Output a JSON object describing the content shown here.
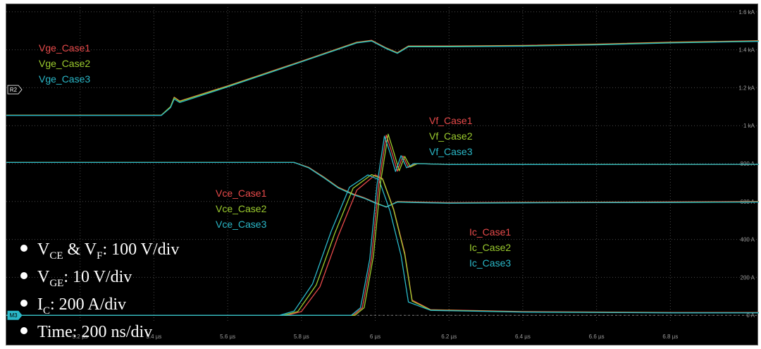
{
  "chart_data": {
    "type": "line",
    "x_unit": "µs",
    "xlim": [
      5.0,
      7.04
    ],
    "x_ticks": [
      "5.2 µs",
      "5.4 µs",
      "5.6 µs",
      "5.8 µs",
      "6 µs",
      "6.2 µs",
      "6.4 µs",
      "6.6 µs",
      "6.8 µs"
    ],
    "x_tick_values": [
      5.2,
      5.4,
      5.6,
      5.8,
      6.0,
      6.2,
      6.4,
      6.6,
      6.8
    ],
    "y_unit": "A",
    "ylim": [
      -40,
      1640
    ],
    "y_ticks": [
      "1.6 kA",
      "1.4 kA",
      "1.2 kA",
      "1 kA",
      "800 A",
      "600 A",
      "400 A",
      "200 A",
      "0 A"
    ],
    "y_tick_values": [
      1600,
      1400,
      1200,
      1000,
      800,
      600,
      400,
      200,
      0
    ],
    "grid": true,
    "markers": {
      "ref": "R2",
      "math": "M3"
    },
    "case_colors": [
      "#e84a4a",
      "#9ccc2e",
      "#2ab8c8"
    ],
    "series": [
      {
        "name": "Vge_Case1",
        "color": "#e84a4a",
        "x": [
          5.0,
          5.42,
          5.445,
          5.455,
          5.47,
          5.6,
          5.8,
          5.95,
          5.99,
          6.03,
          6.06,
          6.09,
          6.2,
          6.4,
          6.6,
          6.8,
          7.04
        ],
        "y": [
          1055,
          1055,
          1100,
          1150,
          1130,
          1210,
          1340,
          1440,
          1450,
          1410,
          1385,
          1420,
          1420,
          1423,
          1430,
          1440,
          1448
        ]
      },
      {
        "name": "Vge_Case2",
        "color": "#9ccc2e",
        "x": [
          5.0,
          5.42,
          5.445,
          5.455,
          5.47,
          5.6,
          5.8,
          5.95,
          5.99,
          6.03,
          6.06,
          6.09,
          6.2,
          6.4,
          6.6,
          6.8,
          7.04
        ],
        "y": [
          1055,
          1055,
          1100,
          1148,
          1128,
          1208,
          1338,
          1438,
          1448,
          1408,
          1383,
          1418,
          1418,
          1421,
          1428,
          1438,
          1446
        ]
      },
      {
        "name": "Vge_Case3",
        "color": "#2ab8c8",
        "x": [
          5.0,
          5.42,
          5.445,
          5.455,
          5.47,
          5.6,
          5.8,
          5.95,
          5.99,
          6.03,
          6.06,
          6.09,
          6.2,
          6.4,
          6.6,
          6.8,
          7.04
        ],
        "y": [
          1054,
          1054,
          1095,
          1140,
          1122,
          1204,
          1336,
          1436,
          1446,
          1406,
          1381,
          1416,
          1416,
          1419,
          1426,
          1436,
          1444
        ]
      },
      {
        "name": "Vce_Case1",
        "color": "#e84a4a",
        "x": [
          5.0,
          5.78,
          5.82,
          5.86,
          5.9,
          5.94,
          5.97,
          6.0,
          6.03,
          6.06,
          6.1,
          6.2,
          6.4,
          6.6,
          6.8,
          7.04
        ],
        "y": [
          806,
          806,
          780,
          730,
          675,
          640,
          620,
          595,
          570,
          600,
          598,
          594,
          596,
          597,
          598,
          600
        ]
      },
      {
        "name": "Vce_Case2",
        "color": "#9ccc2e",
        "x": [
          5.0,
          5.78,
          5.82,
          5.86,
          5.9,
          5.94,
          5.97,
          6.0,
          6.03,
          6.06,
          6.1,
          6.2,
          6.4,
          6.6,
          6.8,
          7.04
        ],
        "y": [
          806,
          806,
          778,
          728,
          673,
          638,
          618,
          593,
          572,
          598,
          596,
          592,
          594,
          595,
          596,
          598
        ]
      },
      {
        "name": "Vce_Case3",
        "color": "#2ab8c8",
        "x": [
          5.0,
          5.78,
          5.82,
          5.86,
          5.9,
          5.94,
          5.97,
          6.0,
          6.03,
          6.06,
          6.1,
          6.2,
          6.4,
          6.6,
          6.8,
          7.04
        ],
        "y": [
          806,
          806,
          777,
          726,
          671,
          636,
          617,
          592,
          571,
          597,
          595,
          591,
          593,
          594,
          595,
          597
        ]
      },
      {
        "name": "Ic_Case1",
        "color": "#e84a4a",
        "x": [
          5.0,
          5.76,
          5.8,
          5.85,
          5.9,
          5.95,
          6.0,
          6.02,
          6.05,
          6.08,
          6.1,
          6.15,
          6.4,
          6.8,
          7.04
        ],
        "y": [
          0,
          0,
          20,
          150,
          420,
          660,
          740,
          720,
          560,
          330,
          80,
          30,
          20,
          15,
          15
        ]
      },
      {
        "name": "Ic_Case2",
        "color": "#9ccc2e",
        "x": [
          5.0,
          5.75,
          5.79,
          5.84,
          5.89,
          5.94,
          5.99,
          6.02,
          6.05,
          6.08,
          6.1,
          6.15,
          6.4,
          6.8,
          7.04
        ],
        "y": [
          0,
          0,
          20,
          160,
          430,
          670,
          742,
          718,
          555,
          320,
          75,
          28,
          18,
          14,
          14
        ]
      },
      {
        "name": "Ic_Case3",
        "color": "#2ab8c8",
        "x": [
          5.0,
          5.74,
          5.78,
          5.83,
          5.88,
          5.93,
          5.98,
          6.01,
          6.04,
          6.07,
          6.09,
          6.15,
          6.4,
          6.8,
          7.04
        ],
        "y": [
          0,
          0,
          22,
          165,
          440,
          675,
          740,
          715,
          550,
          315,
          70,
          26,
          17,
          13,
          13
        ]
      },
      {
        "name": "Vf_Case1",
        "color": "#e84a4a",
        "x": [
          5.0,
          5.94,
          5.965,
          5.99,
          6.01,
          6.03,
          6.045,
          6.06,
          6.075,
          6.09,
          6.11,
          6.2,
          6.5,
          7.04
        ],
        "y": [
          0,
          0,
          40,
          300,
          700,
          950,
          860,
          760,
          840,
          780,
          800,
          795,
          795,
          796
        ]
      },
      {
        "name": "Vf_Case2",
        "color": "#9ccc2e",
        "x": [
          5.0,
          5.945,
          5.97,
          5.995,
          6.015,
          6.035,
          6.05,
          6.065,
          6.08,
          6.095,
          6.115,
          6.2,
          6.5,
          7.04
        ],
        "y": [
          0,
          0,
          40,
          310,
          710,
          955,
          862,
          762,
          838,
          782,
          800,
          795,
          795,
          796
        ]
      },
      {
        "name": "Vf_Case3",
        "color": "#2ab8c8",
        "x": [
          5.0,
          5.935,
          5.96,
          5.985,
          6.005,
          6.025,
          6.04,
          6.055,
          6.07,
          6.085,
          6.105,
          6.2,
          6.5,
          7.04
        ],
        "y": [
          0,
          0,
          40,
          295,
          690,
          945,
          858,
          758,
          842,
          778,
          800,
          795,
          795,
          796
        ]
      }
    ],
    "label_groups": [
      {
        "labels": [
          "Vge_Case1",
          "Vge_Case2",
          "Vge_Case3"
        ]
      },
      {
        "labels": [
          "Vf_Case1",
          "Vf_Case2",
          "Vf_Case3"
        ]
      },
      {
        "labels": [
          "Vce_Case1",
          "Vce_Case2",
          "Vce_Case3"
        ]
      },
      {
        "labels": [
          "Ic_Case1",
          "Ic_Case2",
          "Ic_Case3"
        ]
      }
    ],
    "notes": [
      {
        "main": "V",
        "sub": "CE",
        "mid": " & V",
        "sub2": "F",
        "tail": ": 100 V/div"
      },
      {
        "main": "V",
        "sub": "GE",
        "tail": ": 10 V/div"
      },
      {
        "main": "I",
        "sub": "C",
        "tail": ": 200 A/div"
      },
      {
        "main": "Time: 200 ns/div"
      }
    ]
  }
}
